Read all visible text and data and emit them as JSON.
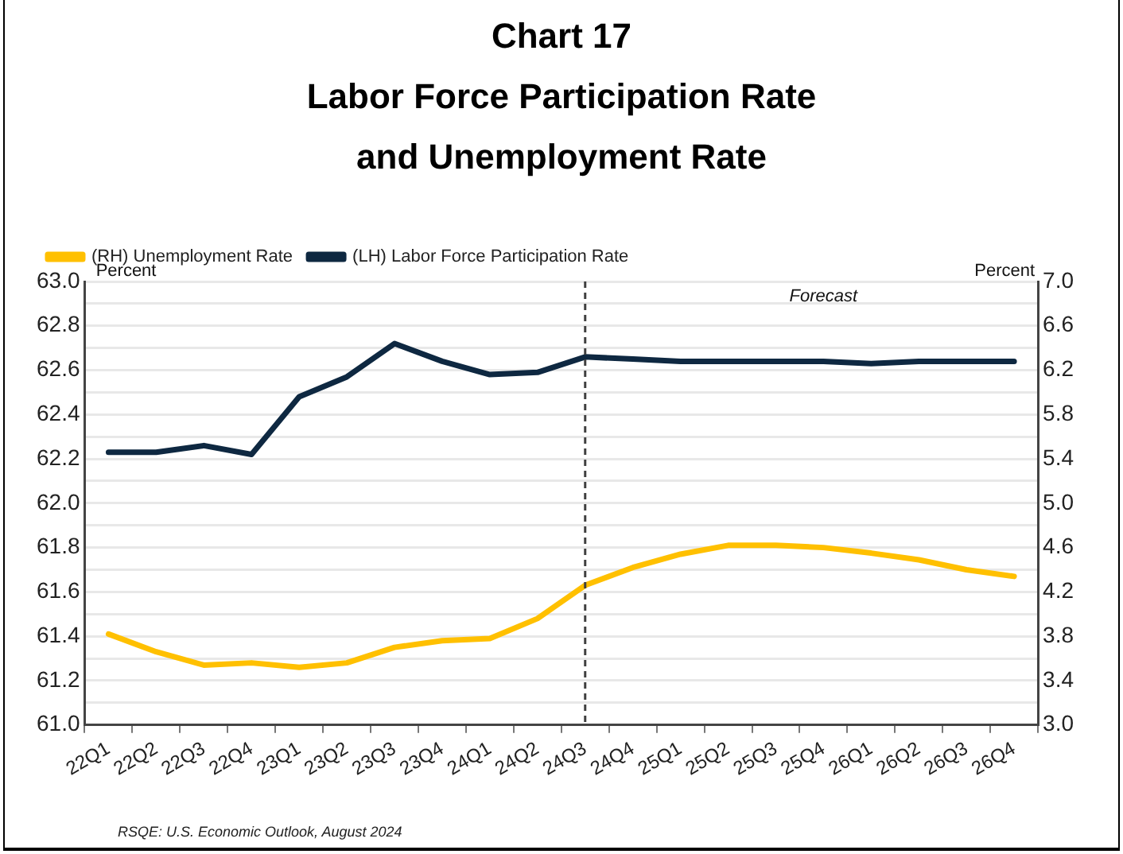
{
  "chart_data": {
    "type": "line",
    "title": "Chart 17",
    "subtitle": "Labor Force Participation Rate and Unemployment Rate",
    "ylabel": "Percent",
    "y2label": "Percent",
    "categories": [
      "22Q1",
      "22Q2",
      "22Q3",
      "22Q4",
      "23Q1",
      "23Q2",
      "23Q3",
      "23Q4",
      "24Q1",
      "24Q2",
      "24Q3",
      "24Q4",
      "25Q1",
      "25Q2",
      "25Q3",
      "25Q4",
      "26Q1",
      "26Q2",
      "26Q3",
      "26Q4"
    ],
    "series": [
      {
        "name": "(RH) Unemployment Rate",
        "color": "#ffc000",
        "axis": "y2",
        "values": [
          3.82,
          3.66,
          3.54,
          3.56,
          3.52,
          3.56,
          3.7,
          3.76,
          3.78,
          3.96,
          4.26,
          4.42,
          4.54,
          4.62,
          4.62,
          4.6,
          4.55,
          4.49,
          4.4,
          4.34
        ]
      },
      {
        "name": "(LH) Labor Force Participation Rate",
        "color": "#0e2841",
        "values": [
          62.23,
          62.23,
          62.26,
          62.22,
          62.48,
          62.57,
          62.72,
          62.64,
          62.58,
          62.59,
          62.66,
          62.65,
          62.64,
          62.64,
          62.64,
          62.64,
          62.63,
          62.64,
          62.64,
          62.64
        ]
      }
    ],
    "ylim": [
      61,
      63
    ],
    "yticks": [
      {
        "value": 61,
        "label": "61.0"
      },
      {
        "value": 61.1,
        "label": null
      },
      {
        "value": 61.2,
        "label": "61.2"
      },
      {
        "value": 61.3,
        "label": null
      },
      {
        "value": 61.4,
        "label": "61.4"
      },
      {
        "value": 61.5,
        "label": null
      },
      {
        "value": 61.6,
        "label": "61.6"
      },
      {
        "value": 61.7,
        "label": null
      },
      {
        "value": 61.8,
        "label": "61.8"
      },
      {
        "value": 61.9,
        "label": null
      },
      {
        "value": 62,
        "label": "62.0"
      },
      {
        "value": 62.1,
        "label": null
      },
      {
        "value": 62.2,
        "label": "62.2"
      },
      {
        "value": 62.3,
        "label": null
      },
      {
        "value": 62.4,
        "label": "62.4"
      },
      {
        "value": 62.5,
        "label": null
      },
      {
        "value": 62.6,
        "label": "62.6"
      },
      {
        "value": 62.7,
        "label": null
      },
      {
        "value": 62.8,
        "label": "62.8"
      },
      {
        "value": 62.9,
        "label": null
      },
      {
        "value": 63,
        "label": "63.0"
      }
    ],
    "y2lim": [
      3,
      7
    ],
    "y2ticks": [
      {
        "value": 3,
        "label": "3.0"
      },
      3.4,
      3.8,
      4.2,
      4.6,
      {
        "value": 5,
        "label": "5.0"
      },
      5.4,
      5.8,
      6.2,
      6.6,
      {
        "value": 7,
        "label": "7.0"
      }
    ],
    "ref_lines": [
      {
        "axis": "x",
        "value": "24Q3",
        "label": null,
        "color": "#404040",
        "line_style": "dashed"
      }
    ],
    "annotations": [
      "Forecast",
      "RSQE: U.S. Economic Outlook, August 2024"
    ],
    "grid": "y",
    "legend": "top left",
    "marker": "none",
    "line_style": "solid"
  }
}
